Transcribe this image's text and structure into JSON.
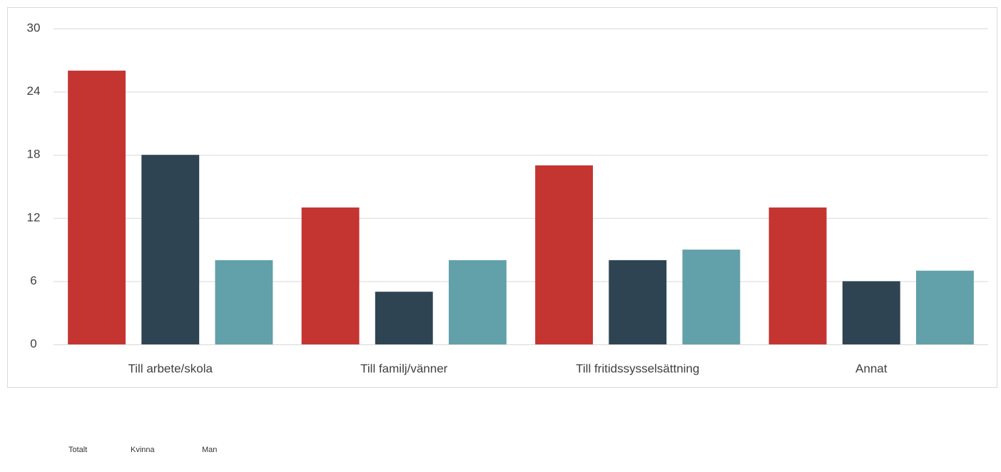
{
  "chart_data": {
    "type": "bar",
    "categories": [
      "Till arbete/skola",
      "Till familj/vänner",
      "Till fritidssysselsättning",
      "Annat"
    ],
    "series": [
      {
        "name": "Totalt",
        "color": "#c43431",
        "values": [
          26,
          13,
          17,
          13
        ]
      },
      {
        "name": "Kvinna",
        "color": "#2e4453",
        "values": [
          18,
          5,
          8,
          6
        ]
      },
      {
        "name": "Man",
        "color": "#62a0aa",
        "values": [
          8,
          8,
          9,
          7
        ]
      }
    ],
    "ylim": [
      0,
      30
    ],
    "yticks": [
      0,
      6,
      12,
      18,
      24,
      30
    ],
    "grid": true
  }
}
